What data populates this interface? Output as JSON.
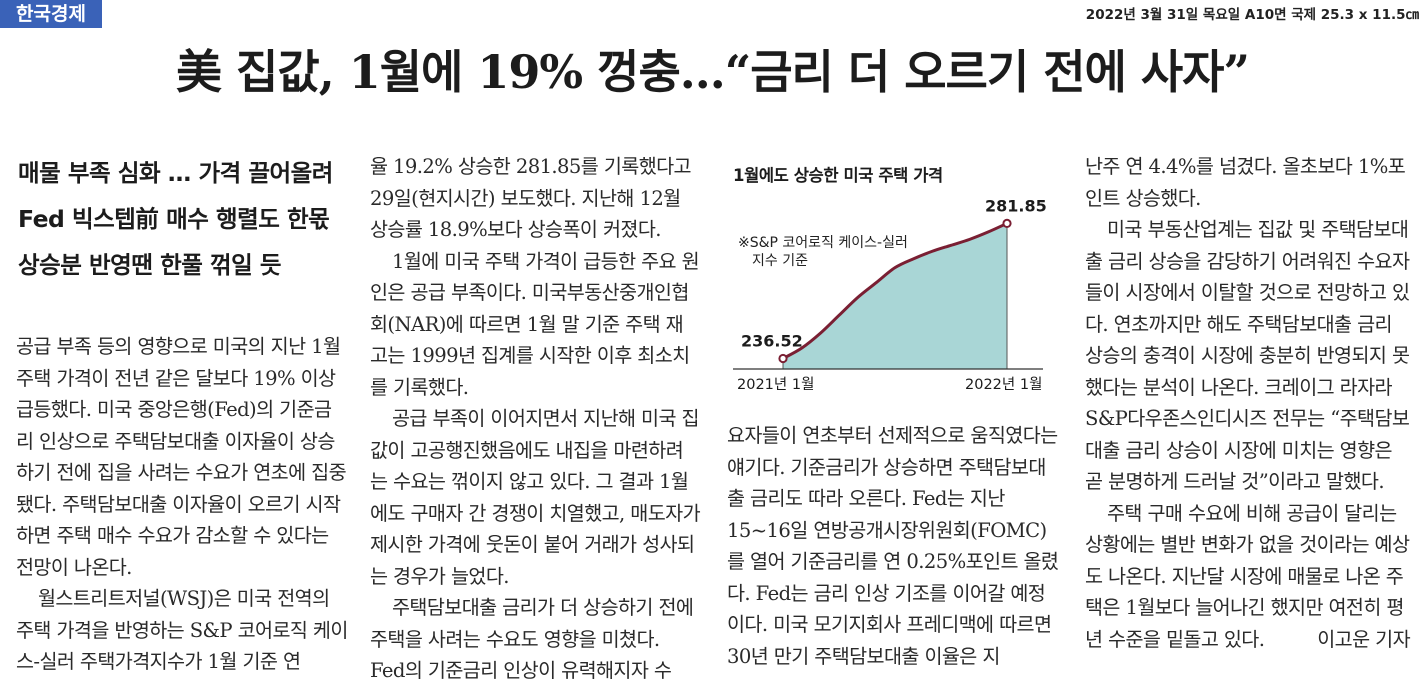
{
  "masthead": {
    "logo": "한국경제",
    "dateline": "2022년 3월 31일 목요일 A10면 국제 25.3 x 11.5㎝"
  },
  "headline": "美 집값, 1월에 19% 껑충…“금리 더 오르기 전에 사자”",
  "subheads": [
    "매물 부족 심화 … 가격 끌어올려",
    "Fed 빅스텝前 매수 행렬도 한몫",
    "상승분 반영땐 한풀 꺾일 듯"
  ],
  "body": {
    "col1": [
      "공급 부족 등의 영향으로 미국의 지난 1월 주택 가격이 전년 같은 달보다 19% 이상 급등했다. 미국 중앙은행(Fed)의 기준금리 인상으로 주택담보대출 이자율이 상승하기 전에 집을 사려는 수요가 연초에 집중됐다. 주택담보대출 이자율이 오르기 시작하면 주택 매수 수요가 감소할 수 있다는 전망이 나온다.",
      "월스트리트저널(WSJ)은 미국 전역의 주택 가격을 반영하는 S&P 코어로직 케이스-실러 주택가격지수가 1월 기준 연"
    ],
    "col2": [
      "율 19.2% 상승한 281.85를 기록했다고 29일(현지시간) 보도했다. 지난해 12월 상승률 18.9%보다 상승폭이 커졌다.",
      "1월에 미국 주택 가격이 급등한 주요 원인은 공급 부족이다. 미국부동산중개인협회(NAR)에 따르면 1월 말 기준 주택 재고는 1999년 집계를 시작한 이후 최소치를 기록했다.",
      "공급 부족이 이어지면서 지난해 미국 집값이 고공행진했음에도 내집을 마련하려는 수요는 꺾이지 않고 있다. 그 결과 1월에도 구매자 간 경쟁이 치열했고, 매도자가 제시한 가격에 웃돈이 붙어 거래가 성사되는 경우가 늘었다.",
      "주택담보대출 금리가 더 상승하기 전에 주택을 사려는 수요도 영향을 미쳤다. Fed의 기준금리 인상이 유력해지자 수"
    ],
    "col3": [
      "요자들이 연초부터 선제적으로 움직였다는 얘기다. 기준금리가 상승하면 주택담보대출 금리도 따라 오른다. Fed는 지난 15~16일 연방공개시장위원회(FOMC)를 열어 기준금리를 연 0.25%포인트 올렸다. Fed는 금리 인상 기조를 이어갈 예정이다. 미국 모기지회사 프레디맥에 따르면 30년 만기 주택담보대출 이율은 지"
    ],
    "col4": [
      "난주 연 4.4%를 넘겼다. 올초보다 1%포인트 상승했다.",
      "미국 부동산업계는 집값 및 주택담보대출 금리 상승을 감당하기 어려워진 수요자들이 시장에서 이탈할 것으로 전망하고 있다. 연초까지만 해도 주택담보대출 금리 상승의 충격이 시장에 충분히 반영되지 못했다는 분석이 나온다. 크레이그 라자라 S&P다우존스인디시즈 전무는 “주택담보대출 금리 상승이 시장에 미치는 영향은 곧 분명하게 드러날 것”이라고 말했다.",
      "주택 구매 수요에 비해 공급이 달리는 상황에는 별반 변화가 없을 것이라는 예상도 나온다. 지난달 시장에 매물로 나온 주택은 1월보다 늘어나긴 했지만 여전히 평년 수준을 밑돌고 있다."
    ],
    "byline": "이고운 기자"
  },
  "colors": {
    "logo_bg": "#3a62b8",
    "area_fill": "#a9d6d6",
    "line": "#7a1f33"
  },
  "chart_data": {
    "type": "area",
    "title": "1월에도 상승한 미국 주택 가격",
    "note": [
      "※S&P 코어로직 케이스-실러",
      "지수 기준"
    ],
    "x": [
      "2021년 1월",
      "",
      "",
      "",
      "",
      "",
      "",
      "",
      "",
      "",
      "",
      "",
      "2022년 1월"
    ],
    "xlabels": [
      "2021년 1월",
      "2022년 1월"
    ],
    "values": [
      236.52,
      240,
      245,
      251,
      257,
      262,
      267,
      270,
      272.5,
      274.5,
      276.5,
      279,
      281.85
    ],
    "data_labels": [
      {
        "index": 0,
        "text": "236.52"
      },
      {
        "index": 12,
        "text": "281.85"
      }
    ],
    "ylim": [
      233,
      284
    ],
    "grid": false,
    "legend": "none"
  }
}
